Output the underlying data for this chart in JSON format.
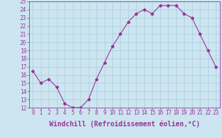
{
  "x": [
    0,
    1,
    2,
    3,
    4,
    5,
    6,
    7,
    8,
    9,
    10,
    11,
    12,
    13,
    14,
    15,
    16,
    17,
    18,
    19,
    20,
    21,
    22,
    23
  ],
  "y": [
    16.5,
    15.0,
    15.5,
    14.5,
    12.5,
    12.0,
    12.0,
    13.0,
    15.5,
    17.5,
    19.5,
    21.0,
    22.5,
    23.5,
    24.0,
    23.5,
    24.5,
    24.5,
    24.5,
    23.5,
    23.0,
    21.0,
    19.0,
    17.0
  ],
  "line_color": "#993399",
  "marker": "D",
  "marker_size": 2,
  "bg_color": "#cce5f0",
  "grid_color": "#aaccdd",
  "xlabel": "Windchill (Refroidissement éolien,°C)",
  "xlabel_color": "#993399",
  "tick_color": "#993399",
  "ylim": [
    12,
    25
  ],
  "xlim": [
    -0.5,
    23.5
  ],
  "yticks": [
    12,
    13,
    14,
    15,
    16,
    17,
    18,
    19,
    20,
    21,
    22,
    23,
    24,
    25
  ],
  "xticks": [
    0,
    1,
    2,
    3,
    4,
    5,
    6,
    7,
    8,
    9,
    10,
    11,
    12,
    13,
    14,
    15,
    16,
    17,
    18,
    19,
    20,
    21,
    22,
    23
  ],
  "tick_fontsize": 5.5,
  "xlabel_fontsize": 7.0
}
